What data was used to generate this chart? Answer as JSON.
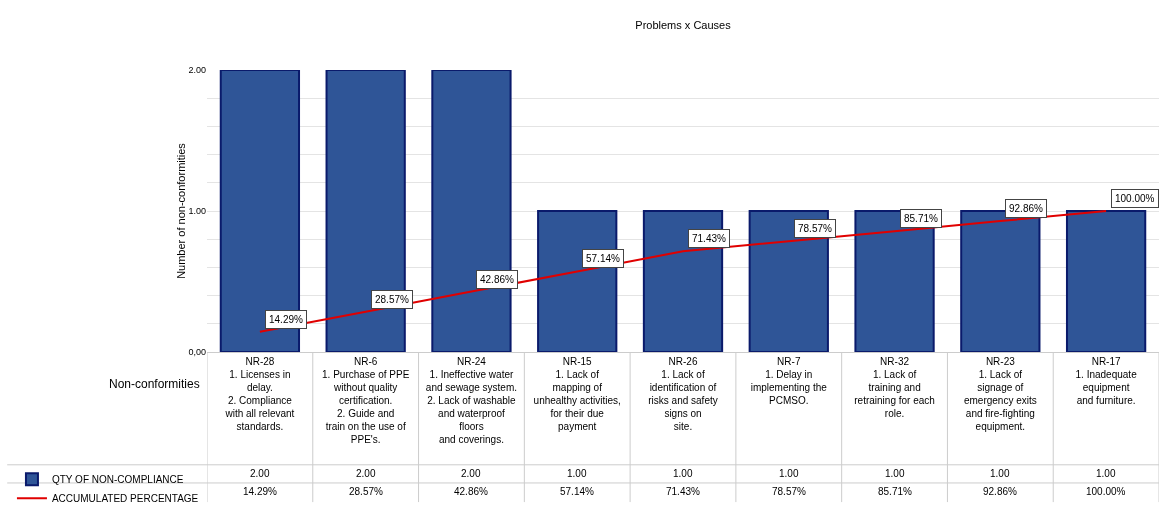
{
  "chart_data": {
    "type": "bar",
    "title": "Problems x Causes",
    "ylabel": "Number of non-conformities",
    "xlabel": "Non-conformities",
    "categories": [
      "NR-28\n1. Licenses in\ndelay.\n2. Compliance\nwith all relevant\nstandards.",
      "NR-6\n1. Purchase of PPE\nwithout quality\ncertification.\n2. Guide and\ntrain on the use of\nPPE's.",
      "NR-24\n1. Ineffective water\nand sewage system.\n2. Lack of washable\nand waterproof\nfloors\nand coverings.",
      "NR-15\n1. Lack of\nmapping of\nunhealthy activities,\nfor their due\npayment",
      "NR-26\n1. Lack of\nidentification of\nrisks and safety\nsigns on\nsite.",
      "NR-7\n1. Delay in\nimplementing the\nPCMSO.",
      "NR-32\n1. Lack of\ntraining and\nretraining for each\nrole.",
      "NR-23\n1. Lack of\nsignage of\nemergency exits\nand fire-fighting\nequipment.",
      "NR-17\n1. Inadequate\nequipment\nand furniture."
    ],
    "series": [
      {
        "name": "QTY OF NON-COMPLIANCE",
        "color": "#2f5597",
        "values": [
          2,
          2,
          2,
          1,
          1,
          1,
          1,
          1,
          1
        ],
        "value_labels": [
          "2.00",
          "2.00",
          "2.00",
          "1.00",
          "1.00",
          "1.00",
          "1.00",
          "1.00",
          "1.00"
        ]
      },
      {
        "name": "ACCUMULATED PERCENTAGE",
        "type": "line",
        "axis": "y2",
        "color": "#e00000",
        "values": [
          14.29,
          28.57,
          42.86,
          57.14,
          71.43,
          78.57,
          85.71,
          92.86,
          100
        ],
        "value_labels": [
          "14.29%",
          "28.57%",
          "42.86%",
          "57.14%",
          "71.43%",
          "78.57%",
          "85.71%",
          "92.86%",
          "100.00%"
        ]
      }
    ],
    "ylim": [
      0,
      2
    ],
    "yticks": [
      {
        "value": 0,
        "label": "0,00"
      },
      {
        "value": 0.2,
        "label": null
      },
      {
        "value": 0.4,
        "label": null
      },
      {
        "value": 0.6,
        "label": null
      },
      {
        "value": 0.8,
        "label": null
      },
      {
        "value": 1,
        "label": "1.00"
      },
      {
        "value": 1.2,
        "label": null
      },
      {
        "value": 1.4,
        "label": null
      },
      {
        "value": 1.6,
        "label": null
      },
      {
        "value": 1.8,
        "label": null
      },
      {
        "value": 2,
        "label": "2.00"
      }
    ],
    "y2lim": [
      0,
      200
    ],
    "grid": "y",
    "legend": "bottom left",
    "data_labels": true,
    "marker": "none",
    "line_style": "solid"
  }
}
